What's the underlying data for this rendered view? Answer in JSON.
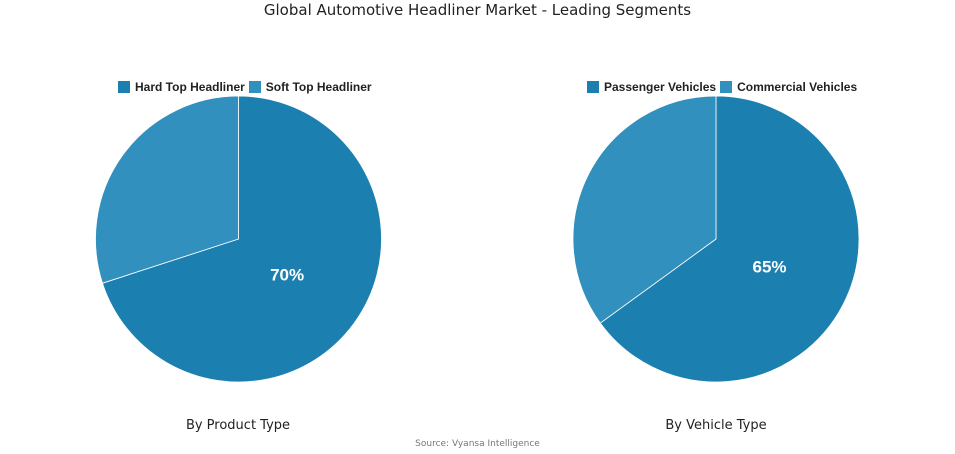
{
  "title": "Global Automotive Headliner Market - Leading Segments",
  "source": "Source: Vyansa Intelligence",
  "colors": {
    "primary": "#1b7fb0",
    "secondary": "#3190bd"
  },
  "chart_data": [
    {
      "type": "pie",
      "subtitle": "By Product Type",
      "labels": [
        "Hard Top Headliner",
        "Soft Top Headliner"
      ],
      "values": [
        70,
        30
      ],
      "data_labels": [
        "70%",
        ""
      ],
      "legend": "top"
    },
    {
      "type": "pie",
      "subtitle": "By Vehicle Type",
      "labels": [
        "Passenger Vehicles",
        "Commercial Vehicles"
      ],
      "values": [
        65,
        35
      ],
      "data_labels": [
        "65%",
        ""
      ],
      "legend": "top"
    }
  ]
}
